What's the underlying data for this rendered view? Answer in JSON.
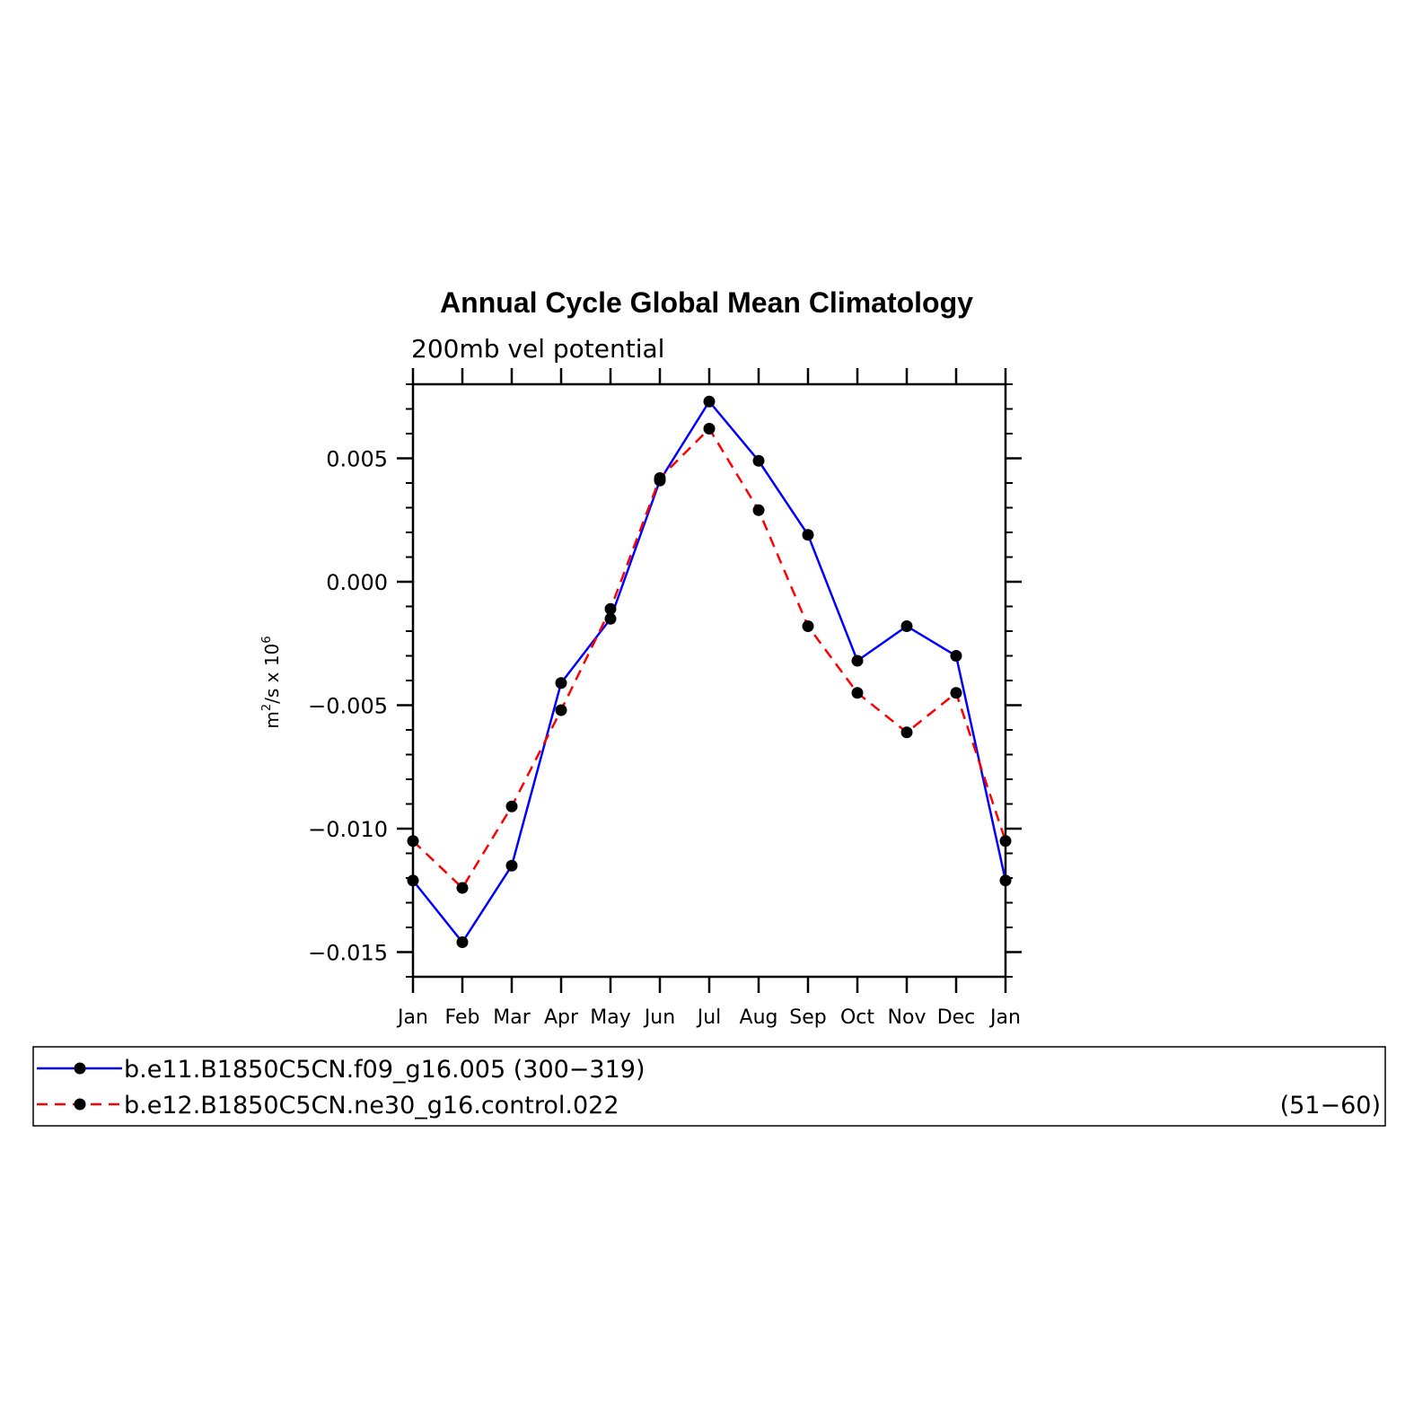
{
  "chart_data": {
    "type": "line",
    "title": "Annual Cycle Global Mean Climatology",
    "subtitle": "200mb vel potential",
    "ylabel_base": "m",
    "ylabel_sup1": "2",
    "ylabel_mid": "/s x 10",
    "ylabel_sup2": "6",
    "categories": [
      "Jan",
      "Feb",
      "Mar",
      "Apr",
      "May",
      "Jun",
      "Jul",
      "Aug",
      "Sep",
      "Oct",
      "Nov",
      "Dec",
      "Jan"
    ],
    "ylim": [
      -0.016,
      0.008
    ],
    "yticks": [
      -0.015,
      -0.01,
      -0.005,
      0.0,
      0.005
    ],
    "ytick_labels": [
      "−0.015",
      "−0.010",
      "−0.005",
      "0.000",
      "0.005"
    ],
    "series": [
      {
        "name": "b.e11.B1850C5CN.f09_g16.005 (300−319)",
        "color": "#0000ff",
        "dash": "solid",
        "values": [
          -0.0121,
          -0.0146,
          -0.0115,
          -0.0041,
          -0.0015,
          0.0041,
          0.0073,
          0.0049,
          0.0019,
          -0.0032,
          -0.0018,
          -0.003,
          -0.0121
        ]
      },
      {
        "name": "b.e12.B1850C5CN.ne30_g16.control.022",
        "name_suffix": "(51−60)",
        "color": "#ff0000",
        "dash": "dashed",
        "values": [
          -0.0105,
          -0.0124,
          -0.0091,
          -0.0052,
          -0.0011,
          0.0042,
          0.0062,
          0.0029,
          -0.0018,
          -0.0045,
          -0.0061,
          -0.0045,
          -0.0105
        ]
      }
    ],
    "legend_placement": "bottom",
    "grid": false
  }
}
